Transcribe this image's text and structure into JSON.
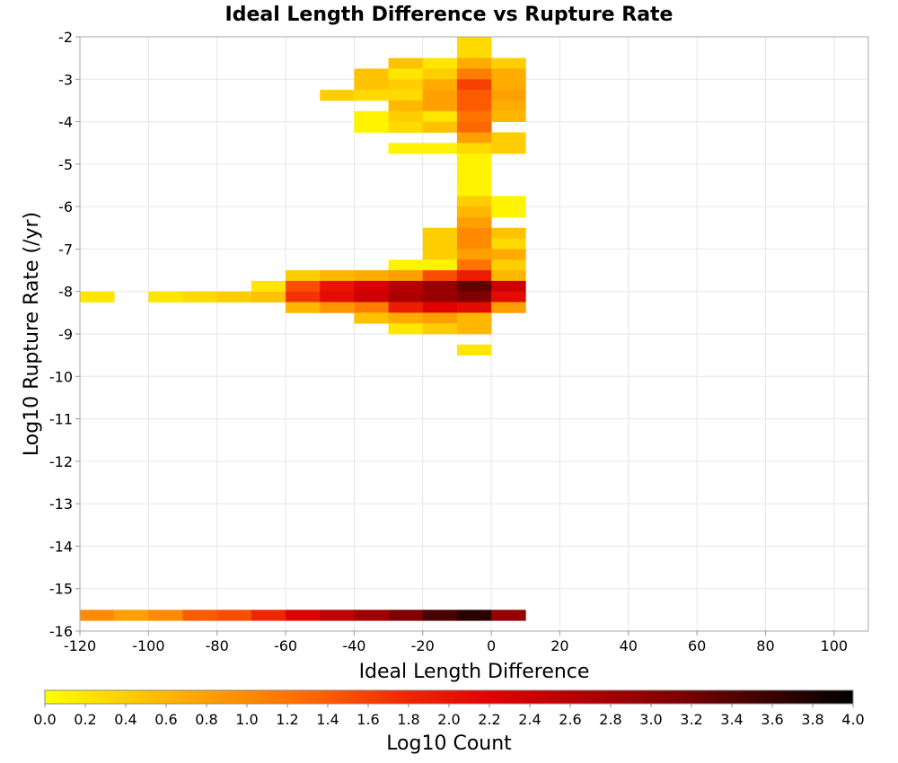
{
  "chart_data": {
    "type": "heatmap",
    "title": "Ideal Length Difference vs Rupture Rate",
    "xlabel": "Ideal Length Difference",
    "ylabel": "Log10 Rupture Rate (/yr)",
    "xlim": [
      -120,
      110
    ],
    "ylim": [
      -16,
      -2
    ],
    "x_ticks": [
      "-120",
      "-100",
      "-80",
      "-60",
      "-40",
      "-20",
      "0",
      "20",
      "40",
      "60",
      "80",
      "100"
    ],
    "y_ticks": [
      "-2",
      "-3",
      "-4",
      "-5",
      "-6",
      "-7",
      "-8",
      "-9",
      "-10",
      "-11",
      "-12",
      "-13",
      "-14",
      "-15",
      "-16"
    ],
    "bin_width_x": 10,
    "bin_height_y": 0.25,
    "grid": true,
    "colorbar": {
      "label": "Log10 Count",
      "range": [
        0,
        4
      ],
      "ticks": [
        "0.0",
        "0.2",
        "0.4",
        "0.6",
        "0.8",
        "1.0",
        "1.2",
        "1.4",
        "1.6",
        "1.8",
        "2.0",
        "2.2",
        "2.4",
        "2.6",
        "2.8",
        "3.0",
        "3.2",
        "3.4",
        "3.6",
        "3.8",
        "4.0"
      ],
      "colors": [
        "#ffff00",
        "#ffc800",
        "#ff9600",
        "#ff6400",
        "#f02800",
        "#e00000",
        "#b00000",
        "#800000",
        "#400000",
        "#000000"
      ]
    },
    "cells": [
      [
        -10,
        -2.25,
        0.3
      ],
      [
        -10,
        -2.5,
        0.3
      ],
      [
        -30,
        -2.75,
        0.5
      ],
      [
        -20,
        -2.75,
        0.2
      ],
      [
        -10,
        -2.75,
        0.7
      ],
      [
        0,
        -2.75,
        0.4
      ],
      [
        -40,
        -3.0,
        0.5
      ],
      [
        -30,
        -3.0,
        0.2
      ],
      [
        -20,
        -3.0,
        0.4
      ],
      [
        -10,
        -3.0,
        1.1
      ],
      [
        0,
        -3.0,
        0.7
      ],
      [
        -40,
        -3.25,
        0.5
      ],
      [
        -30,
        -3.25,
        0.4
      ],
      [
        -20,
        -3.25,
        0.7
      ],
      [
        -10,
        -3.25,
        1.6
      ],
      [
        0,
        -3.25,
        0.7
      ],
      [
        -50,
        -3.5,
        0.4
      ],
      [
        -40,
        -3.5,
        0.3
      ],
      [
        -30,
        -3.5,
        0.3
      ],
      [
        -20,
        -3.5,
        0.8
      ],
      [
        -10,
        -3.5,
        1.4
      ],
      [
        0,
        -3.5,
        0.8
      ],
      [
        -30,
        -3.75,
        0.6
      ],
      [
        -20,
        -3.75,
        0.8
      ],
      [
        -10,
        -3.75,
        1.4
      ],
      [
        0,
        -3.75,
        0.7
      ],
      [
        -40,
        -4.0,
        0.1
      ],
      [
        -30,
        -4.0,
        0.4
      ],
      [
        -20,
        -4.0,
        0.2
      ],
      [
        -10,
        -4.0,
        1.2
      ],
      [
        0,
        -4.0,
        0.6
      ],
      [
        -40,
        -4.25,
        0.1
      ],
      [
        -30,
        -4.25,
        0.3
      ],
      [
        -20,
        -4.25,
        0.5
      ],
      [
        -10,
        -4.25,
        1.3
      ],
      [
        -10,
        -4.5,
        0.8
      ],
      [
        0,
        -4.5,
        0.4
      ],
      [
        -30,
        -4.75,
        0.1
      ],
      [
        -20,
        -4.75,
        0.1
      ],
      [
        -10,
        -4.75,
        0.3
      ],
      [
        0,
        -4.75,
        0.4
      ],
      [
        -10,
        -5.0,
        0.1
      ],
      [
        -10,
        -5.25,
        0.1
      ],
      [
        -10,
        -5.5,
        0.1
      ],
      [
        -10,
        -5.75,
        0.1
      ],
      [
        -10,
        -6.0,
        0.4
      ],
      [
        0,
        -6.0,
        0.1
      ],
      [
        -10,
        -6.25,
        0.6
      ],
      [
        0,
        -6.25,
        0.1
      ],
      [
        -10,
        -6.5,
        0.8
      ],
      [
        -20,
        -6.75,
        0.4
      ],
      [
        -10,
        -6.75,
        1.0
      ],
      [
        0,
        -6.75,
        0.5
      ],
      [
        -20,
        -7.0,
        0.4
      ],
      [
        -10,
        -7.0,
        1.0
      ],
      [
        0,
        -7.0,
        0.3
      ],
      [
        -20,
        -7.25,
        0.4
      ],
      [
        -10,
        -7.25,
        0.8
      ],
      [
        0,
        -7.25,
        0.7
      ],
      [
        -30,
        -7.5,
        0.1
      ],
      [
        -20,
        -7.5,
        0.1
      ],
      [
        -10,
        -7.5,
        1.2
      ],
      [
        0,
        -7.5,
        0.4
      ],
      [
        -60,
        -7.75,
        0.4
      ],
      [
        -50,
        -7.75,
        0.6
      ],
      [
        -40,
        -7.75,
        0.7
      ],
      [
        -30,
        -7.75,
        0.8
      ],
      [
        -20,
        -7.75,
        1.5
      ],
      [
        -10,
        -7.75,
        1.9
      ],
      [
        0,
        -7.75,
        0.6
      ],
      [
        -70,
        -8.0,
        0.2
      ],
      [
        -60,
        -8.0,
        1.5
      ],
      [
        -50,
        -8.0,
        2.0
      ],
      [
        -40,
        -8.0,
        2.3
      ],
      [
        -30,
        -8.0,
        2.6
      ],
      [
        -20,
        -8.0,
        2.9
      ],
      [
        -10,
        -8.0,
        3.3
      ],
      [
        0,
        -8.0,
        2.4
      ],
      [
        -120,
        -8.25,
        0.2
      ],
      [
        -100,
        -8.25,
        0.2
      ],
      [
        -90,
        -8.25,
        0.3
      ],
      [
        -80,
        -8.25,
        0.4
      ],
      [
        -70,
        -8.25,
        0.5
      ],
      [
        -60,
        -8.25,
        1.7
      ],
      [
        -50,
        -8.25,
        2.1
      ],
      [
        -40,
        -8.25,
        2.4
      ],
      [
        -30,
        -8.25,
        2.7
      ],
      [
        -20,
        -8.25,
        2.9
      ],
      [
        -10,
        -8.25,
        3.1
      ],
      [
        0,
        -8.25,
        2.1
      ],
      [
        -60,
        -8.5,
        0.6
      ],
      [
        -50,
        -8.5,
        0.9
      ],
      [
        -40,
        -8.5,
        1.1
      ],
      [
        -30,
        -8.5,
        1.9
      ],
      [
        -20,
        -8.5,
        2.2
      ],
      [
        -10,
        -8.5,
        2.1
      ],
      [
        0,
        -8.5,
        0.8
      ],
      [
        -40,
        -8.75,
        0.5
      ],
      [
        -30,
        -8.75,
        0.7
      ],
      [
        -20,
        -8.75,
        0.8
      ],
      [
        -10,
        -8.75,
        0.6
      ],
      [
        -30,
        -9.0,
        0.2
      ],
      [
        -20,
        -9.0,
        0.4
      ],
      [
        -10,
        -9.0,
        0.6
      ],
      [
        -10,
        -9.5,
        0.2
      ],
      [
        -120,
        -15.75,
        1.0
      ],
      [
        -110,
        -15.75,
        0.8
      ],
      [
        -100,
        -15.75,
        1.0
      ],
      [
        -90,
        -15.75,
        1.4
      ],
      [
        -80,
        -15.75,
        1.5
      ],
      [
        -70,
        -15.75,
        1.8
      ],
      [
        -60,
        -15.75,
        2.2
      ],
      [
        -50,
        -15.75,
        2.5
      ],
      [
        -40,
        -15.75,
        2.8
      ],
      [
        -30,
        -15.75,
        3.1
      ],
      [
        -20,
        -15.75,
        3.5
      ],
      [
        -10,
        -15.75,
        3.7
      ],
      [
        0,
        -15.75,
        2.9
      ]
    ]
  }
}
